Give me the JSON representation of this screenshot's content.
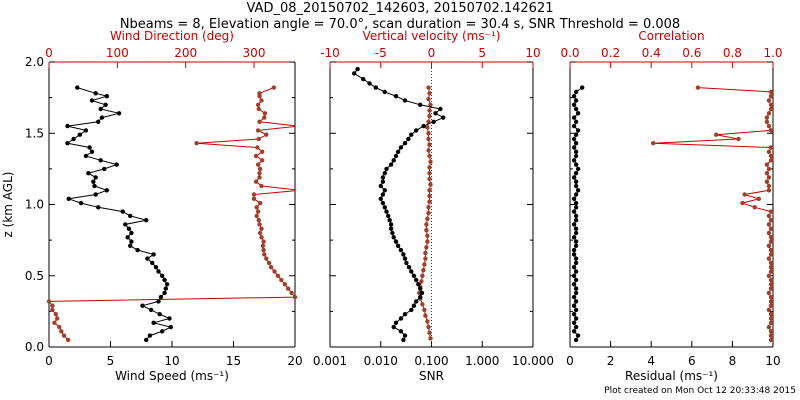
{
  "header": {
    "title_line1": "VAD_08_20150702_142603, 20150702.142621",
    "title_line2": "Nbeams = 8, Elevation angle = 70.0°, scan duration = 30.4 s, SNR Threshold = 0.008"
  },
  "footer": {
    "credit": "Plot created on Mon Oct 12 20:33:48 2015"
  },
  "colors": {
    "black": "#000000",
    "red": "#cc0000",
    "brown": "#a0402a"
  },
  "chart_data": [
    {
      "id": "panel1",
      "type": "line",
      "ylabel": "z (km AGL)",
      "ylim": [
        0,
        2
      ],
      "y_ticks": [
        "0.0",
        "0.5",
        "1.0",
        "1.5",
        "2.0"
      ],
      "bottom_axis": {
        "label": "Wind Speed (ms⁻¹)",
        "lim": [
          0,
          20
        ],
        "ticks": [
          "0",
          "5",
          "10",
          "15",
          "20"
        ]
      },
      "top_axis": {
        "label": "Wind Direction (deg)",
        "lim": [
          0,
          360
        ],
        "ticks": [
          "0",
          "100",
          "200",
          "300"
        ]
      },
      "series": [
        {
          "name": "Wind Speed",
          "axis": "bottom",
          "color": "#000000",
          "z": [
            1.82,
            1.78,
            1.76,
            1.73,
            1.7,
            1.67,
            1.64,
            1.61,
            1.58,
            1.55,
            1.52,
            1.49,
            1.46,
            1.43,
            1.4,
            1.37,
            1.34,
            1.31,
            1.28,
            1.25,
            1.22,
            1.19,
            1.16,
            1.13,
            1.1,
            1.07,
            1.04,
            1.01,
            0.98,
            0.95,
            0.92,
            0.89,
            0.86,
            0.83,
            0.8,
            0.77,
            0.74,
            0.71,
            0.68,
            0.65,
            0.62,
            0.59,
            0.56,
            0.53,
            0.5,
            0.47,
            0.44,
            0.41,
            0.38,
            0.35,
            0.32,
            0.29,
            0.26,
            0.23,
            0.2,
            0.17,
            0.14,
            0.11,
            0.08,
            0.05
          ],
          "values": [
            2.3,
            3.8,
            4.7,
            3.5,
            4.6,
            4.2,
            5.7,
            4.3,
            4.0,
            1.5,
            3.0,
            2.5,
            2.0,
            1.5,
            3.3,
            3.5,
            3.0,
            4.2,
            5.5,
            4.5,
            3.2,
            3.8,
            3.6,
            3.7,
            4.7,
            3.8,
            1.6,
            2.6,
            4.0,
            6.0,
            6.6,
            7.9,
            6.2,
            6.5,
            6.7,
            6.4,
            6.7,
            6.6,
            7.2,
            8.5,
            8.0,
            8.4,
            8.7,
            8.9,
            9.2,
            9.4,
            9.6,
            9.5,
            9.4,
            9.1,
            8.9,
            7.6,
            8.3,
            9.0,
            9.8,
            8.5,
            9.9,
            9.2,
            8.2,
            7.9
          ]
        },
        {
          "name": "Wind Direction",
          "axis": "top",
          "color": "#a0402a",
          "z": [
            1.82,
            1.78,
            1.76,
            1.73,
            1.7,
            1.67,
            1.64,
            1.61,
            1.58,
            1.55,
            1.52,
            1.49,
            1.46,
            1.43,
            1.4,
            1.37,
            1.34,
            1.31,
            1.28,
            1.25,
            1.22,
            1.19,
            1.16,
            1.13,
            1.1,
            1.07,
            1.04,
            1.01,
            0.98,
            0.95,
            0.92,
            0.89,
            0.86,
            0.83,
            0.8,
            0.77,
            0.74,
            0.71,
            0.68,
            0.65,
            0.62,
            0.59,
            0.56,
            0.53,
            0.5,
            0.47,
            0.44,
            0.41,
            0.38,
            0.35,
            0.32,
            0.29,
            0.26,
            0.23,
            0.2,
            0.17,
            0.14,
            0.11,
            0.08,
            0.05
          ],
          "values": [
            329,
            308,
            308,
            311,
            306,
            307,
            316,
            315,
            308,
            365,
            306,
            318,
            307,
            216,
            305,
            312,
            303,
            312,
            306,
            309,
            308,
            308,
            303,
            311,
            368,
            300,
            300,
            309,
            304,
            306,
            304,
            307,
            308,
            311,
            309,
            311,
            314,
            313,
            314,
            315,
            318,
            322,
            325,
            330,
            335,
            340,
            345,
            350,
            355,
            360,
            0,
            5,
            5,
            10,
            12,
            8,
            15,
            18,
            22,
            28
          ]
        }
      ]
    },
    {
      "id": "panel2",
      "type": "line",
      "ylim": [
        0,
        2
      ],
      "bottom_axis": {
        "label": "SNR",
        "scale": "log",
        "lim": [
          0.001,
          10
        ],
        "ticks": [
          "0.001",
          "0.010",
          "0.100",
          "1.000",
          "10.000"
        ]
      },
      "top_axis": {
        "label": "Vertical velocity (ms⁻¹)",
        "lim": [
          -10,
          10
        ],
        "ticks": [
          "-10",
          "-5",
          "0",
          "5",
          "10"
        ]
      },
      "series": [
        {
          "name": "SNR",
          "axis": "bottom",
          "color": "#000000",
          "z": [
            1.95,
            1.92,
            1.88,
            1.85,
            1.82,
            1.79,
            1.76,
            1.73,
            1.7,
            1.67,
            1.64,
            1.61,
            1.58,
            1.55,
            1.52,
            1.49,
            1.46,
            1.43,
            1.4,
            1.37,
            1.34,
            1.31,
            1.28,
            1.25,
            1.22,
            1.19,
            1.16,
            1.13,
            1.1,
            1.07,
            1.04,
            1.01,
            0.98,
            0.95,
            0.92,
            0.89,
            0.86,
            0.83,
            0.8,
            0.77,
            0.74,
            0.71,
            0.68,
            0.65,
            0.62,
            0.59,
            0.56,
            0.53,
            0.5,
            0.47,
            0.44,
            0.41,
            0.38,
            0.35,
            0.32,
            0.29,
            0.26,
            0.23,
            0.2,
            0.17,
            0.14,
            0.11,
            0.08,
            0.05
          ],
          "values": [
            0.0035,
            0.003,
            0.0045,
            0.006,
            0.008,
            0.012,
            0.02,
            0.03,
            0.06,
            0.15,
            0.12,
            0.17,
            0.11,
            0.07,
            0.05,
            0.04,
            0.035,
            0.03,
            0.025,
            0.022,
            0.02,
            0.018,
            0.016,
            0.013,
            0.012,
            0.011,
            0.011,
            0.01,
            0.012,
            0.011,
            0.01,
            0.011,
            0.012,
            0.013,
            0.014,
            0.015,
            0.016,
            0.016,
            0.017,
            0.018,
            0.02,
            0.022,
            0.025,
            0.028,
            0.03,
            0.032,
            0.036,
            0.04,
            0.045,
            0.05,
            0.055,
            0.06,
            0.065,
            0.06,
            0.05,
            0.045,
            0.04,
            0.03,
            0.025,
            0.02,
            0.018,
            0.025,
            0.03,
            0.028
          ]
        },
        {
          "name": "Vertical velocity",
          "axis": "top",
          "color": "#a0402a",
          "z": [
            1.82,
            1.78,
            1.74,
            1.7,
            1.66,
            1.62,
            1.58,
            1.54,
            1.5,
            1.46,
            1.42,
            1.38,
            1.34,
            1.3,
            1.26,
            1.22,
            1.18,
            1.14,
            1.1,
            1.06,
            1.02,
            0.98,
            0.94,
            0.9,
            0.86,
            0.82,
            0.78,
            0.74,
            0.7,
            0.66,
            0.62,
            0.58,
            0.54,
            0.5,
            0.46,
            0.42,
            0.38,
            0.34,
            0.3,
            0.26,
            0.22,
            0.18,
            0.14,
            0.1,
            0.06
          ],
          "values": [
            -0.3,
            -0.2,
            -0.3,
            -0.1,
            -0.2,
            -0.2,
            -0.3,
            -0.4,
            -0.3,
            -0.3,
            -0.2,
            -0.3,
            -0.2,
            -0.1,
            -0.2,
            -0.2,
            -0.2,
            -0.1,
            -0.2,
            -0.2,
            -0.2,
            -0.3,
            -0.3,
            -0.4,
            -0.5,
            -0.5,
            -0.4,
            -0.4,
            -0.5,
            -0.6,
            -0.6,
            -0.7,
            -0.8,
            -0.9,
            -1.0,
            -1.1,
            -1.2,
            -1.1,
            -0.9,
            -0.7,
            -0.6,
            -0.4,
            -0.3,
            -0.2,
            -0.1
          ]
        }
      ]
    },
    {
      "id": "panel3",
      "type": "line",
      "ylim": [
        0,
        2
      ],
      "bottom_axis": {
        "label": "Residual (ms⁻¹)",
        "lim": [
          0,
          10
        ],
        "ticks": [
          "0",
          "2",
          "4",
          "6",
          "8",
          "10"
        ]
      },
      "top_axis": {
        "label": "Correlation",
        "lim": [
          0,
          1
        ],
        "ticks": [
          "0.0",
          "0.2",
          "0.4",
          "0.6",
          "0.8",
          "1.0"
        ]
      },
      "series": [
        {
          "name": "Residual",
          "axis": "bottom",
          "color": "#000000",
          "z": [
            1.82,
            1.79,
            1.76,
            1.73,
            1.7,
            1.67,
            1.64,
            1.61,
            1.58,
            1.55,
            1.52,
            1.49,
            1.46,
            1.43,
            1.4,
            1.37,
            1.34,
            1.31,
            1.28,
            1.25,
            1.22,
            1.19,
            1.16,
            1.13,
            1.1,
            1.07,
            1.04,
            1.01,
            0.98,
            0.95,
            0.92,
            0.89,
            0.86,
            0.83,
            0.8,
            0.77,
            0.74,
            0.71,
            0.68,
            0.65,
            0.62,
            0.59,
            0.56,
            0.53,
            0.5,
            0.47,
            0.44,
            0.41,
            0.38,
            0.35,
            0.32,
            0.29,
            0.26,
            0.23,
            0.2,
            0.17,
            0.14,
            0.11,
            0.08,
            0.05
          ],
          "values": [
            0.6,
            0.3,
            0.2,
            0.3,
            0.2,
            0.3,
            0.4,
            0.2,
            0.3,
            0.2,
            0.4,
            0.3,
            0.2,
            0.3,
            0.2,
            0.3,
            0.3,
            0.2,
            0.3,
            0.4,
            0.3,
            0.2,
            0.3,
            0.3,
            0.4,
            0.3,
            0.2,
            0.3,
            0.3,
            0.2,
            0.3,
            0.3,
            0.2,
            0.3,
            0.3,
            0.2,
            0.3,
            0.3,
            0.2,
            0.2,
            0.3,
            0.3,
            0.2,
            0.3,
            0.2,
            0.3,
            0.2,
            0.3,
            0.3,
            0.2,
            0.3,
            0.2,
            0.3,
            0.2,
            0.3,
            0.2,
            0.3,
            0.2,
            0.4,
            0.3
          ]
        },
        {
          "name": "Correlation",
          "axis": "top",
          "color": "#a0402a",
          "z": [
            1.82,
            1.79,
            1.76,
            1.73,
            1.7,
            1.67,
            1.64,
            1.61,
            1.58,
            1.55,
            1.52,
            1.49,
            1.46,
            1.43,
            1.4,
            1.37,
            1.34,
            1.31,
            1.28,
            1.25,
            1.22,
            1.19,
            1.16,
            1.13,
            1.1,
            1.07,
            1.04,
            1.01,
            0.98,
            0.95,
            0.92,
            0.89,
            0.86,
            0.83,
            0.8,
            0.77,
            0.74,
            0.71,
            0.68,
            0.65,
            0.62,
            0.59,
            0.56,
            0.53,
            0.5,
            0.47,
            0.44,
            0.41,
            0.38,
            0.35,
            0.32,
            0.29,
            0.26,
            0.23,
            0.2,
            0.17,
            0.14,
            0.11,
            0.08,
            0.05
          ],
          "values": [
            0.63,
            0.99,
            0.99,
            0.98,
            0.99,
            0.99,
            0.98,
            0.97,
            0.97,
            0.98,
            0.99,
            0.72,
            0.83,
            0.41,
            0.99,
            0.98,
            0.99,
            0.99,
            0.97,
            0.98,
            0.97,
            0.98,
            0.97,
            0.98,
            0.98,
            0.86,
            0.93,
            0.85,
            0.91,
            0.99,
            0.98,
            0.99,
            0.98,
            0.99,
            0.98,
            0.99,
            0.99,
            0.98,
            0.99,
            0.99,
            0.98,
            0.99,
            0.99,
            0.99,
            0.98,
            0.99,
            0.99,
            0.99,
            0.98,
            0.99,
            0.99,
            0.99,
            0.98,
            0.99,
            0.99,
            0.99,
            0.98,
            0.99,
            0.99,
            0.99
          ]
        }
      ]
    }
  ]
}
